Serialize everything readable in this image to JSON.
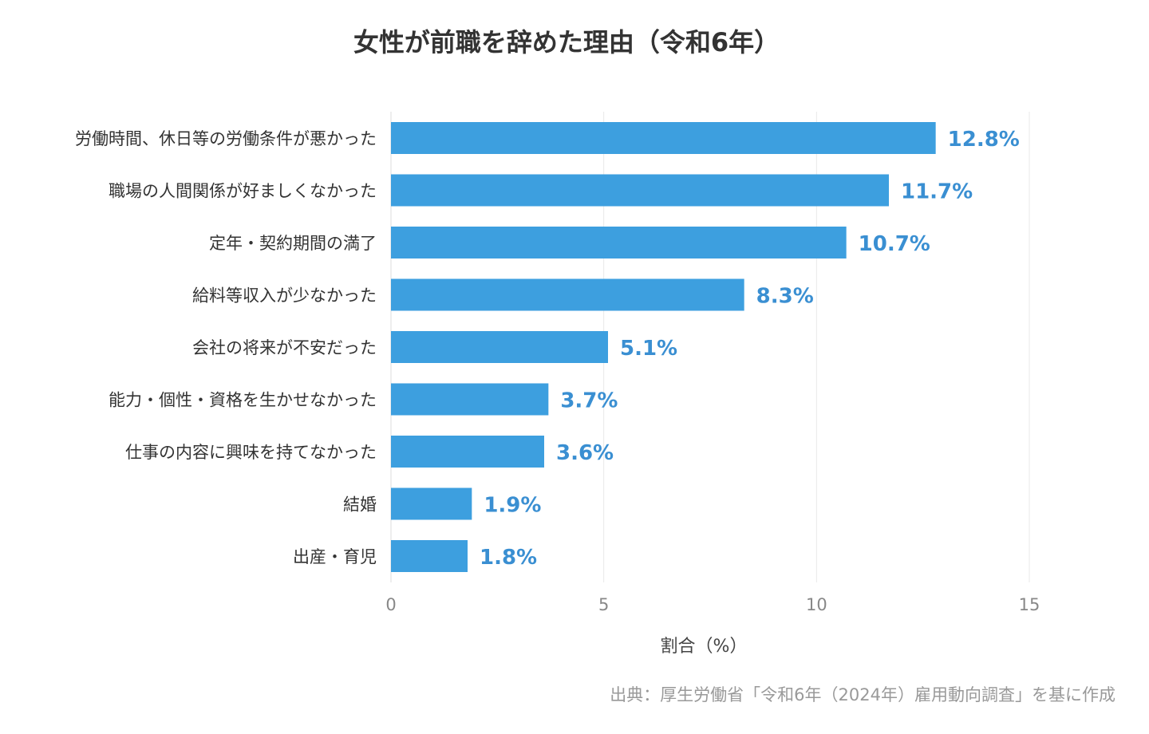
{
  "chart_data": {
    "type": "bar",
    "orientation": "horizontal",
    "title": "女性が前職を辞めた理由（令和6年）",
    "xlabel": "割合（%）",
    "ylabel": "",
    "xlim": [
      0,
      15
    ],
    "xticks": [
      0,
      5,
      10,
      15
    ],
    "grid": true,
    "bar_color": "#3d9fdf",
    "value_label_color": "#3a8fd2",
    "value_suffix": "%",
    "categories": [
      "労働時間、休日等の労働条件が悪かった",
      "職場の人間関係が好ましくなかった",
      "定年・契約期間の満了",
      "給料等収入が少なかった",
      "会社の将来が不安だった",
      "能力・個性・資格を生かせなかった",
      "仕事の内容に興味を持てなかった",
      "結婚",
      "出産・育児"
    ],
    "values": [
      12.8,
      11.7,
      10.7,
      8.3,
      5.1,
      3.7,
      3.6,
      1.9,
      1.8
    ],
    "value_labels": [
      "12.8%",
      "11.7%",
      "10.7%",
      "8.3%",
      "5.1%",
      "3.7%",
      "3.6%",
      "1.9%",
      "1.8%"
    ]
  },
  "source_note": "出典：厚生労働省「令和6年（2024年）雇用動向調査」を基に作成"
}
